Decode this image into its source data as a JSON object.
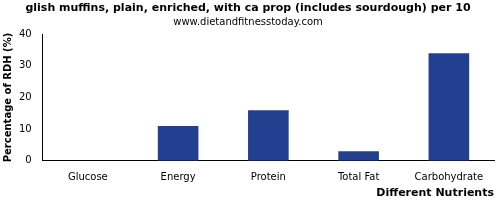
{
  "chart_data": {
    "type": "bar",
    "title": "glish muffins, plain, enriched, with ca prop (includes sourdough) per 10",
    "subtitle": "www.dietandfitnesstoday.com",
    "x_label": "Different Nutrients",
    "y_label": "Percentage of RDH (%)",
    "categories": [
      "Glucose",
      "Energy",
      "Protein",
      "Total Fat",
      "Carbohydrate"
    ],
    "values": [
      0,
      11,
      16,
      3,
      34
    ],
    "color": "#233f8f",
    "ylim": [
      0,
      40
    ],
    "yticks": [
      0,
      10,
      20,
      30,
      40
    ],
    "grid": false
  }
}
